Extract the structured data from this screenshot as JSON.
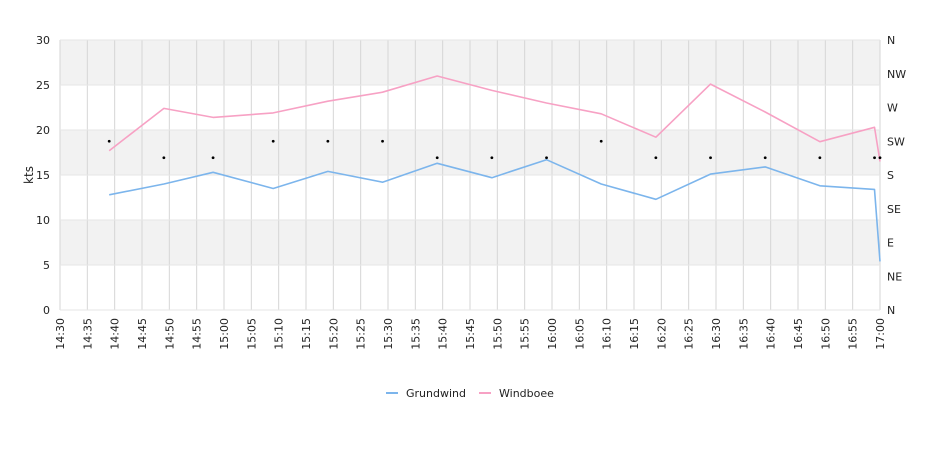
{
  "chart_data": {
    "type": "line",
    "title": "",
    "ylabel": "kts",
    "ylim": [
      0,
      30
    ],
    "y_ticks": [
      "0",
      "5",
      "10",
      "15",
      "20",
      "25",
      "30"
    ],
    "x_ticks": [
      "14:30",
      "14:35",
      "14:40",
      "14:45",
      "14:50",
      "14:55",
      "15:00",
      "15:05",
      "15:10",
      "15:15",
      "15:20",
      "15:25",
      "15:30",
      "15:35",
      "15:40",
      "15:45",
      "15:50",
      "15:55",
      "16:00",
      "16:05",
      "16:10",
      "16:15",
      "16:20",
      "16:25",
      "16:30",
      "16:35",
      "16:40",
      "16:45",
      "16:50",
      "16:55",
      "17:00"
    ],
    "right_axis": {
      "label": "",
      "ticks": [
        "N",
        "NE",
        "E",
        "SE",
        "S",
        "SW",
        "W",
        "NW",
        "N"
      ],
      "range_degrees": [
        0,
        360
      ]
    },
    "grid": true,
    "legend_position": "bottom",
    "series": [
      {
        "name": "Grundwind",
        "color": "#7cb5ec",
        "x": [
          "14:39",
          "14:49",
          "14:58",
          "15:09",
          "15:19",
          "15:29",
          "15:39",
          "15:49",
          "15:59",
          "16:09",
          "16:19",
          "16:29",
          "16:39",
          "16:49",
          "16:59",
          "17:00"
        ],
        "values": [
          12.8,
          14.0,
          15.3,
          13.5,
          15.4,
          14.2,
          16.3,
          14.7,
          16.7,
          14.0,
          12.3,
          15.1,
          15.9,
          13.8,
          13.4,
          5.4
        ]
      },
      {
        "name": "Windboee",
        "color": "#f7a1c4",
        "x": [
          "14:39",
          "14:49",
          "14:58",
          "15:09",
          "15:19",
          "15:29",
          "15:39",
          "15:49",
          "15:59",
          "16:09",
          "16:19",
          "16:29",
          "16:39",
          "16:49",
          "16:59",
          "17:00"
        ],
        "values": [
          17.7,
          22.4,
          21.4,
          21.9,
          23.2,
          24.2,
          26.0,
          24.4,
          23.0,
          21.8,
          19.2,
          25.1,
          22.0,
          18.7,
          20.3,
          16.5
        ]
      }
    ],
    "direction_points": {
      "x": [
        "14:39",
        "14:49",
        "14:58",
        "15:09",
        "15:19",
        "15:29",
        "15:39",
        "15:49",
        "15:59",
        "16:09",
        "16:19",
        "16:29",
        "16:39",
        "16:49",
        "16:59",
        "17:00"
      ],
      "values": [
        225,
        203,
        203,
        225,
        225,
        225,
        203,
        203,
        203,
        225,
        203,
        203,
        203,
        203,
        203,
        203
      ]
    }
  }
}
